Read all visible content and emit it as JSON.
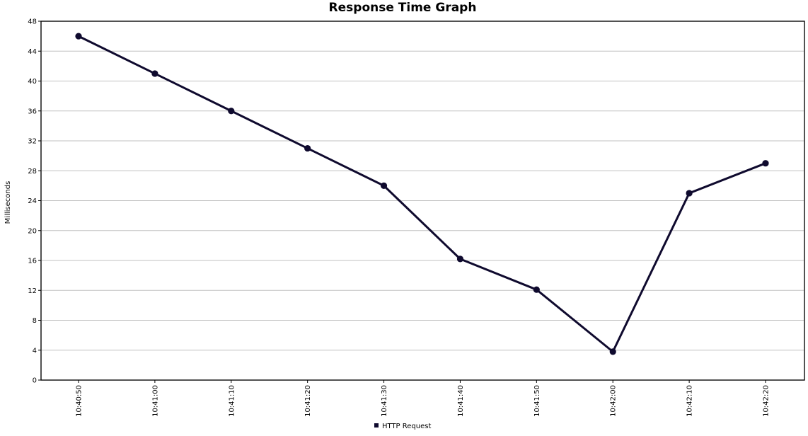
{
  "chart_data": {
    "type": "line",
    "title": "Response Time Graph",
    "xlabel": "",
    "ylabel": "Milliseconds",
    "ylim": [
      0,
      48
    ],
    "y_ticks": [
      "0",
      "4",
      "8",
      "12",
      "16",
      "20",
      "24",
      "28",
      "32",
      "36",
      "40",
      "44",
      "48"
    ],
    "categories": [
      "10:40:50",
      "10:41:00",
      "10:41:10",
      "10:41:20",
      "10:41:30",
      "10:41:40",
      "10:41:50",
      "10:42:00",
      "10:42:10",
      "10:42:20"
    ],
    "grid": true,
    "legend_position": "bottom",
    "series": [
      {
        "name": "HTTP Request",
        "color": "#0f0a2e",
        "values": [
          46,
          41,
          36,
          31,
          26,
          16.2,
          12.1,
          3.8,
          25,
          29
        ]
      }
    ]
  }
}
